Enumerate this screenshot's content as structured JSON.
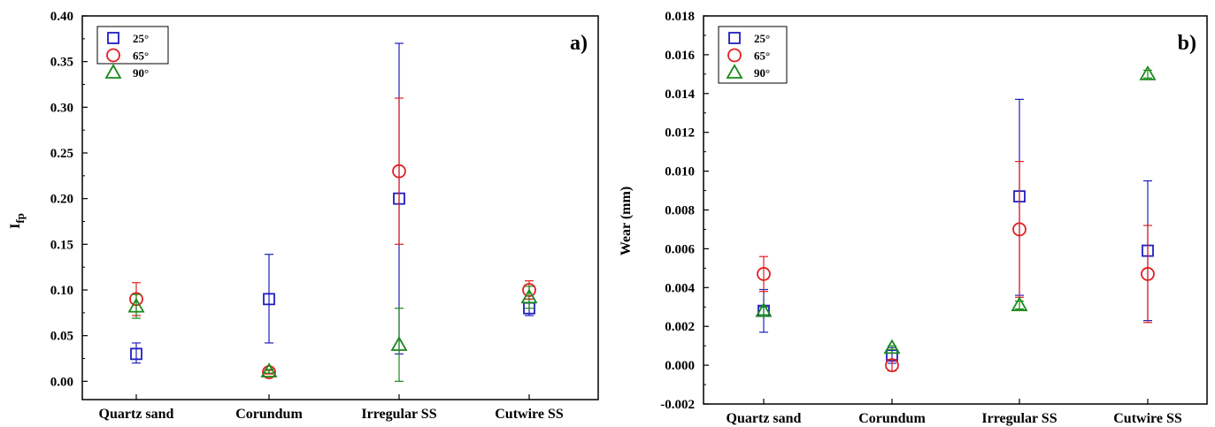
{
  "chart_data": [
    {
      "type": "scatter",
      "panel_label": "a)",
      "ylabel": "I",
      "ylabel_sub": "fp",
      "xlabel": "",
      "categories": [
        "Quartz sand",
        "Corundum",
        "Irregular SS",
        "Cutwire SS"
      ],
      "ylim": [
        -0.02,
        0.4
      ],
      "yticks": [
        "0.00",
        "0.05",
        "0.10",
        "0.15",
        "0.20",
        "0.25",
        "0.30",
        "0.35",
        "0.40"
      ],
      "legend_position": "top-left",
      "series": [
        {
          "name": "25°",
          "marker": "square",
          "color": "#1f1fbf",
          "values": [
            0.03,
            0.09,
            0.2,
            0.08
          ],
          "err_low": [
            0.02,
            0.042,
            0.03,
            0.072
          ],
          "err_high": [
            0.042,
            0.139,
            0.37,
            0.09
          ]
        },
        {
          "name": "65°",
          "marker": "circle",
          "color": "#e02020",
          "values": [
            0.09,
            0.01,
            0.23,
            0.1
          ],
          "err_low": [
            0.072,
            0.008,
            0.15,
            0.09
          ],
          "err_high": [
            0.108,
            0.012,
            0.31,
            0.11
          ]
        },
        {
          "name": "90°",
          "marker": "triangle",
          "color": "#1a8a1a",
          "values": [
            0.082,
            0.011,
            0.04,
            0.092
          ],
          "err_low": [
            0.069,
            0.009,
            0.0,
            0.08
          ],
          "err_high": [
            0.095,
            0.013,
            0.08,
            0.104
          ]
        }
      ]
    },
    {
      "type": "scatter",
      "panel_label": "b)",
      "ylabel": "Wear (mm)",
      "xlabel": "",
      "categories": [
        "Quartz sand",
        "Corundum",
        "Irregular SS",
        "Cutwire SS"
      ],
      "ylim": [
        -0.002,
        0.018
      ],
      "yticks": [
        "-0.002",
        "0.000",
        "0.002",
        "0.004",
        "0.006",
        "0.008",
        "0.010",
        "0.012",
        "0.014",
        "0.016",
        "0.018"
      ],
      "legend_position": "top-left",
      "series": [
        {
          "name": "25°",
          "marker": "square",
          "color": "#1f1fbf",
          "values": [
            0.0028,
            0.0005,
            0.0087,
            0.0059
          ],
          "err_low": [
            0.0017,
            0.0001,
            0.0036,
            0.0023
          ],
          "err_high": [
            0.0039,
            0.0009,
            0.0137,
            0.0095
          ]
        },
        {
          "name": "65°",
          "marker": "circle",
          "color": "#e02020",
          "values": [
            0.0047,
            0.0,
            0.007,
            0.0047
          ],
          "err_low": [
            0.0038,
            -0.0003,
            0.0035,
            0.0022
          ],
          "err_high": [
            0.0056,
            0.0003,
            0.0105,
            0.0072
          ]
        },
        {
          "name": "90°",
          "marker": "triangle",
          "color": "#1a8a1a",
          "values": [
            0.0028,
            0.0009,
            0.0031,
            0.015
          ],
          "err_low": [
            0.0026,
            0.0008,
            0.0029,
            0.0148
          ],
          "err_high": [
            0.003,
            0.001,
            0.0033,
            0.0152
          ]
        }
      ]
    }
  ]
}
